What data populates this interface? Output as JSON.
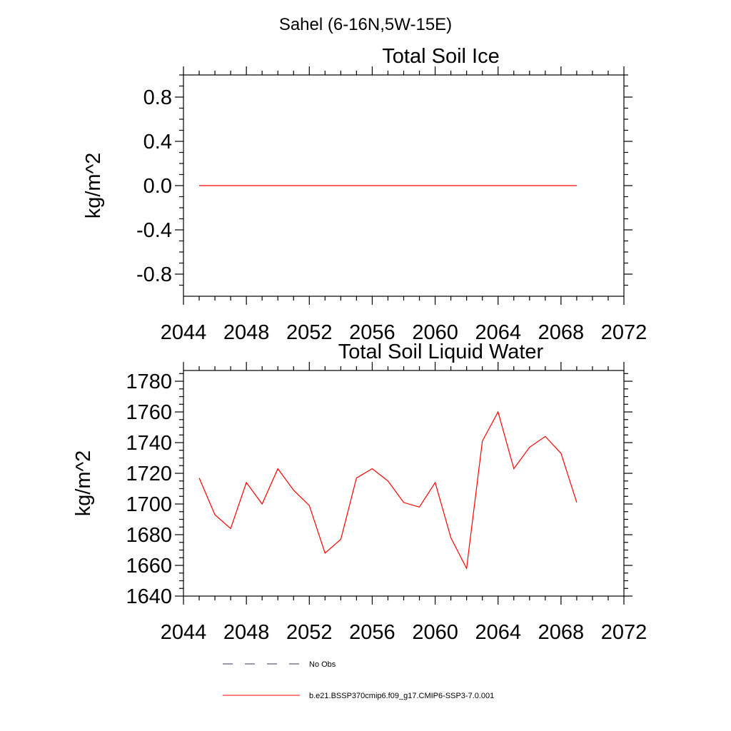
{
  "suptitle": "Sahel (6-16N,5W-15E)",
  "chart_data": [
    {
      "type": "line",
      "title": "Total Soil Ice",
      "xlabel": "",
      "ylabel": "kg/m^2",
      "xlim": [
        2044,
        2072
      ],
      "ylim": [
        -1.0,
        1.0
      ],
      "xticks": [
        2044,
        2048,
        2052,
        2056,
        2060,
        2064,
        2068,
        2072
      ],
      "yticks": [
        -0.8,
        -0.4,
        0.0,
        0.4,
        0.8
      ],
      "ytick_labels": [
        "-0.8",
        "-0.4",
        "0.0",
        "0.4",
        "0.8"
      ],
      "series": [
        {
          "color": "#ff0000",
          "x": [
            2045,
            2046,
            2047,
            2048,
            2049,
            2050,
            2051,
            2052,
            2053,
            2054,
            2055,
            2056,
            2057,
            2058,
            2059,
            2060,
            2061,
            2062,
            2063,
            2064,
            2065,
            2066,
            2067,
            2068,
            2069
          ],
          "y": [
            0,
            0,
            0,
            0,
            0,
            0,
            0,
            0,
            0,
            0,
            0,
            0,
            0,
            0,
            0,
            0,
            0,
            0,
            0,
            0,
            0,
            0,
            0,
            0,
            0
          ]
        }
      ]
    },
    {
      "type": "line",
      "title": "Total Soil Liquid Water",
      "xlabel": "",
      "ylabel": "kg/m^2",
      "xlim": [
        2044,
        2072
      ],
      "ylim": [
        1640,
        1787
      ],
      "xticks": [
        2044,
        2048,
        2052,
        2056,
        2060,
        2064,
        2068,
        2072
      ],
      "yticks": [
        1640,
        1660,
        1680,
        1700,
        1720,
        1740,
        1760,
        1780
      ],
      "ytick_labels": [
        "1640",
        "1660",
        "1680",
        "1700",
        "1720",
        "1740",
        "1760",
        "1780"
      ],
      "series": [
        {
          "color": "#ff0000",
          "x": [
            2045,
            2046,
            2047,
            2048,
            2049,
            2050,
            2051,
            2052,
            2053,
            2054,
            2055,
            2056,
            2057,
            2058,
            2059,
            2060,
            2061,
            2062,
            2063,
            2064,
            2065,
            2066,
            2067,
            2068,
            2069
          ],
          "y": [
            1717,
            1693,
            1684,
            1714,
            1700,
            1723,
            1709,
            1699,
            1668,
            1677,
            1717,
            1723,
            1715,
            1701,
            1698,
            1714,
            1678,
            1658,
            1741,
            1760,
            1723,
            1737,
            1744,
            1733,
            1701
          ]
        }
      ]
    }
  ],
  "legend": {
    "items": [
      {
        "label": "No Obs",
        "color": "#333366",
        "dash": "dashed"
      },
      {
        "label": "b.e21.BSSP370cmip6.f09_g17.CMIP6-SSP3-7.0.001",
        "color": "#ff0000",
        "dash": "solid"
      }
    ]
  }
}
